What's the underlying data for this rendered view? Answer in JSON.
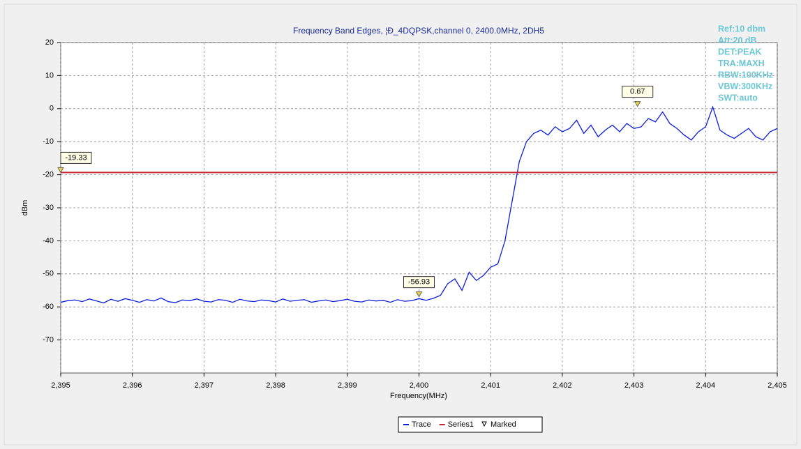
{
  "chart_data": {
    "type": "line",
    "title": "Frequency Band Edges, ¦Ð_4DQPSK,channel 0, 2400.0MHz, 2DH5",
    "x_label": "Frequency(MHz)",
    "y_label": "dBm",
    "annotations": [
      "Ref:10 dbm",
      "Att:20 dB",
      "DET:PEAK",
      "TRA:MAXH",
      "RBW:100KHz",
      "VBW:300KHz",
      "SWT:auto"
    ],
    "xlim": [
      2395,
      2405
    ],
    "ylim": [
      -80,
      20
    ],
    "xticks": [
      {
        "value": 2395,
        "label": "2,395"
      },
      {
        "value": 2396,
        "label": "2,396"
      },
      {
        "value": 2397,
        "label": "2,397"
      },
      {
        "value": 2398,
        "label": "2,398"
      },
      {
        "value": 2399,
        "label": "2,399"
      },
      {
        "value": 2400,
        "label": "2,400"
      },
      {
        "value": 2401,
        "label": "2,401"
      },
      {
        "value": 2402,
        "label": "2,402"
      },
      {
        "value": 2403,
        "label": "2,403"
      },
      {
        "value": 2404,
        "label": "2,404"
      },
      {
        "value": 2405,
        "label": "2,405"
      }
    ],
    "yticks": [
      -70,
      -60,
      -50,
      -40,
      -30,
      -20,
      -10,
      0,
      10,
      20
    ],
    "grid": true,
    "series": [
      {
        "name": "Trace",
        "color": "#0a1ee0",
        "x": [
          2395,
          2395.1,
          2395.2,
          2395.3,
          2395.4,
          2395.5,
          2395.6,
          2395.7,
          2395.8,
          2395.9,
          2396,
          2396.1,
          2396.2,
          2396.3,
          2396.4,
          2396.5,
          2396.6,
          2396.7,
          2396.8,
          2396.9,
          2397,
          2397.1,
          2397.2,
          2397.3,
          2397.4,
          2397.5,
          2397.6,
          2397.7,
          2397.8,
          2397.9,
          2398,
          2398.1,
          2398.2,
          2398.3,
          2398.4,
          2398.5,
          2398.6,
          2398.7,
          2398.8,
          2398.9,
          2399,
          2399.1,
          2399.2,
          2399.3,
          2399.4,
          2399.5,
          2399.6,
          2399.7,
          2399.8,
          2399.9,
          2400,
          2400.1,
          2400.2,
          2400.3,
          2400.4,
          2400.5,
          2400.6,
          2400.7,
          2400.8,
          2400.9,
          2401,
          2401.1,
          2401.2,
          2401.3,
          2401.4,
          2401.5,
          2401.6,
          2401.7,
          2401.8,
          2401.9,
          2402,
          2402.1,
          2402.2,
          2402.3,
          2402.4,
          2402.5,
          2402.6,
          2402.7,
          2402.8,
          2402.9,
          2403,
          2403.1,
          2403.2,
          2403.3,
          2403.4,
          2403.5,
          2403.6,
          2403.7,
          2403.8,
          2403.9,
          2404,
          2404.1,
          2404.2,
          2404.3,
          2404.4,
          2404.5,
          2404.6,
          2404.7,
          2404.8,
          2404.9,
          2405
        ],
        "values": [
          -58.6,
          -58.1,
          -57.9,
          -58.4,
          -57.6,
          -58.2,
          -58.8,
          -57.7,
          -58.3,
          -57.5,
          -58.0,
          -58.6,
          -57.8,
          -58.2,
          -57.3,
          -58.4,
          -58.7,
          -57.9,
          -58.1,
          -57.6,
          -58.3,
          -58.5,
          -57.8,
          -58.0,
          -58.6,
          -57.7,
          -58.2,
          -58.4,
          -57.9,
          -58.1,
          -58.5,
          -57.6,
          -58.3,
          -58.0,
          -57.8,
          -58.6,
          -58.2,
          -57.9,
          -58.4,
          -58.1,
          -57.7,
          -58.3,
          -58.5,
          -57.9,
          -58.2,
          -58.0,
          -58.6,
          -57.8,
          -58.3,
          -58.1,
          -57.5,
          -58.0,
          -57.4,
          -56.5,
          -53.0,
          -51.5,
          -55.0,
          -49.5,
          -52.0,
          -50.5,
          -48.0,
          -47.0,
          -40.0,
          -28.0,
          -16.0,
          -10.0,
          -7.5,
          -6.5,
          -8.0,
          -5.5,
          -7.0,
          -6.0,
          -3.5,
          -7.5,
          -5.0,
          -8.5,
          -6.5,
          -5.0,
          -7.0,
          -4.5,
          -6.0,
          -5.5,
          -3.0,
          -4.0,
          -1.0,
          -4.5,
          -6.0,
          -8.0,
          -9.5,
          -7.0,
          -5.5,
          0.5,
          -6.5,
          -8.0,
          -9.0,
          -7.5,
          -6.0,
          -8.5,
          -9.5,
          -7.0,
          -6.0
        ]
      },
      {
        "name": "Series1",
        "color": "#c0282d",
        "x": [
          2395,
          2405
        ],
        "values": [
          -19.33,
          -19.33
        ]
      },
      {
        "name": "Marked",
        "color": "#e8d44a",
        "x": [
          2395,
          2400,
          2403.05
        ],
        "values": [
          -19.33,
          -56.93,
          0.67
        ]
      }
    ]
  }
}
